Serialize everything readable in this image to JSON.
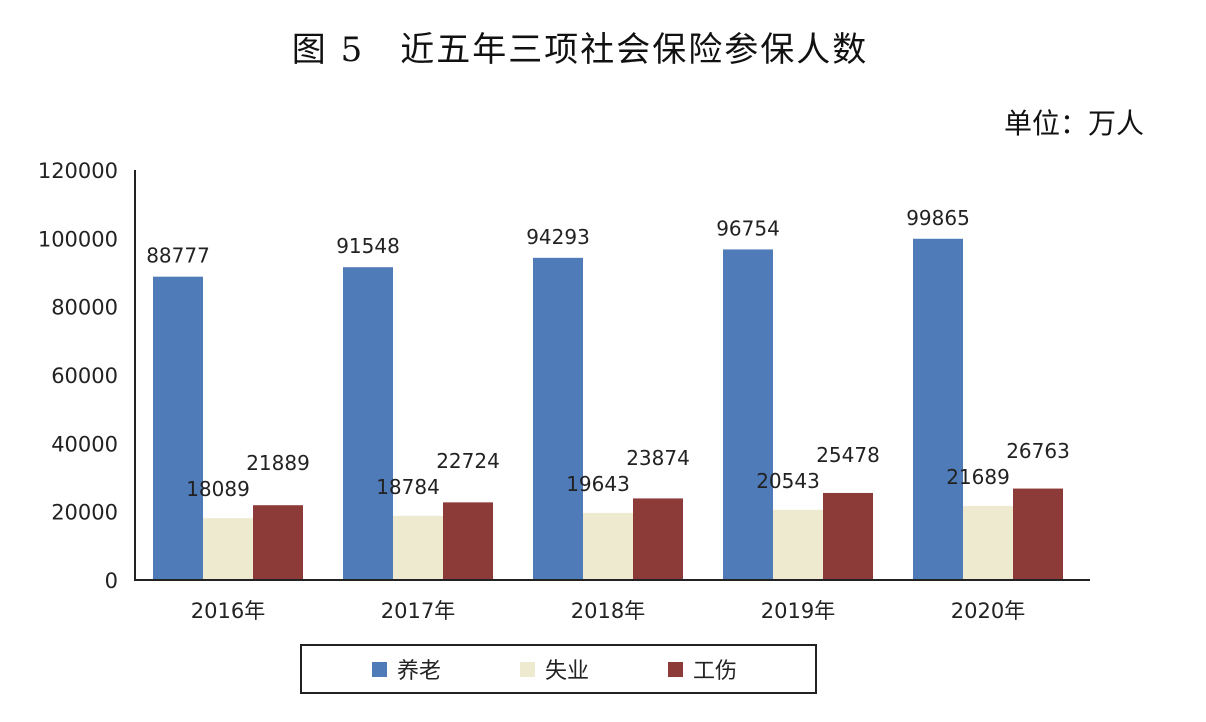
{
  "chart_data": {
    "type": "bar",
    "title": "图 5　近五年三项社会保险参保人数",
    "unit": "单位：万人",
    "categories": [
      "2016年",
      "2017年",
      "2018年",
      "2019年",
      "2020年"
    ],
    "series": [
      {
        "name": "养老",
        "color": "#4f7bb9",
        "values": [
          88777,
          91548,
          94293,
          96754,
          99865
        ]
      },
      {
        "name": "失业",
        "color": "#eeead0",
        "values": [
          18089,
          18784,
          19643,
          20543,
          21689
        ]
      },
      {
        "name": "工伤",
        "color": "#8c3b38",
        "values": [
          21889,
          22724,
          23874,
          25478,
          26763
        ]
      }
    ],
    "ylim": [
      0,
      120000
    ],
    "yticks": [
      0,
      20000,
      40000,
      60000,
      80000,
      100000,
      120000
    ],
    "legend": "bottom",
    "grid": false
  }
}
